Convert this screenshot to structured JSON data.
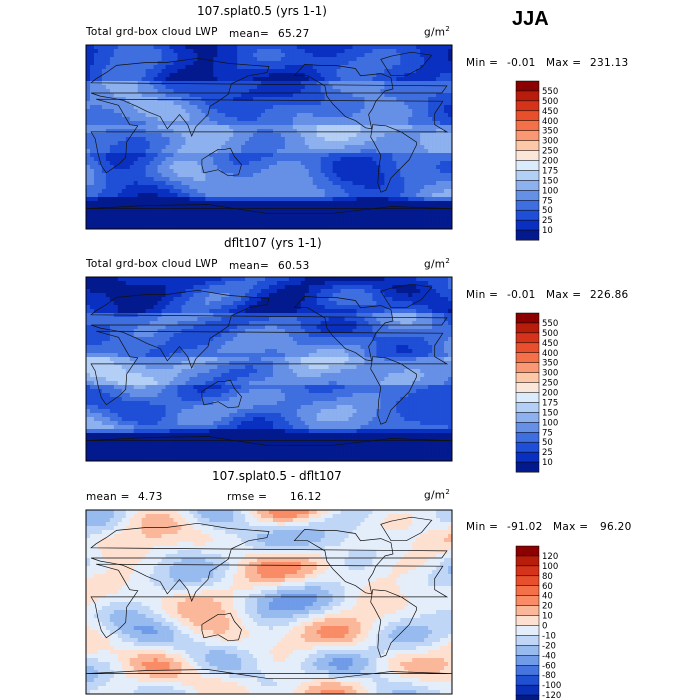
{
  "season": "JJA",
  "chart_data": [
    {
      "type": "heatmap",
      "title": "107.splat0.5 (yrs 1-1)",
      "left_label": "Total grd-box cloud LWP",
      "mean_text": "mean=",
      "mean_value": "65.27",
      "units": "g/m",
      "units_sup": "2",
      "min_text": "Min =",
      "min_value": "-0.01",
      "max_text": "Max =",
      "max_value": "231.13",
      "colorbar": {
        "levels": [
          "550",
          "500",
          "450",
          "400",
          "350",
          "300",
          "250",
          "200",
          "175",
          "150",
          "100",
          "75",
          "50",
          "25",
          "10"
        ],
        "colors": [
          "#8b0000",
          "#b81c0a",
          "#d6341a",
          "#e8502d",
          "#f47048",
          "#f99873",
          "#fdc8a8",
          "#fbe6da",
          "#dcebfb",
          "#b4cff5",
          "#8db0ee",
          "#6690e6",
          "#3f6edf",
          "#1f4fd6",
          "#0a30c2",
          "#031a8f"
        ]
      }
    },
    {
      "type": "heatmap",
      "title": "dflt107 (yrs 1-1)",
      "left_label": "Total grd-box cloud LWP",
      "mean_text": "mean=",
      "mean_value": "60.53",
      "units": "g/m",
      "units_sup": "2",
      "min_text": "Min =",
      "min_value": "-0.01",
      "max_text": "Max =",
      "max_value": "226.86",
      "colorbar": {
        "levels": [
          "550",
          "500",
          "450",
          "400",
          "350",
          "300",
          "250",
          "200",
          "175",
          "150",
          "100",
          "75",
          "50",
          "25",
          "10"
        ],
        "colors": [
          "#8b0000",
          "#b81c0a",
          "#d6341a",
          "#e8502d",
          "#f47048",
          "#f99873",
          "#fdc8a8",
          "#fbe6da",
          "#dcebfb",
          "#b4cff5",
          "#8db0ee",
          "#6690e6",
          "#3f6edf",
          "#1f4fd6",
          "#0a30c2",
          "#031a8f"
        ]
      }
    },
    {
      "type": "heatmap",
      "title": "107.splat0.5 - dflt107",
      "mean_text": "mean =",
      "mean_value": "4.73",
      "rmse_text": "rmse =",
      "rmse_value": "16.12",
      "units": "g/m",
      "units_sup": "2",
      "min_text": "Min =",
      "min_value": "-91.02",
      "max_text": "Max =",
      "max_value": "96.20",
      "colorbar": {
        "levels": [
          "120",
          "100",
          "80",
          "60",
          "40",
          "20",
          "10",
          "0",
          "-10",
          "-20",
          "-40",
          "-60",
          "-80",
          "-100",
          "-120"
        ],
        "colors": [
          "#8b0000",
          "#b81c0a",
          "#d6341a",
          "#e8502d",
          "#f47048",
          "#f98c66",
          "#fbb799",
          "#fde0d0",
          "#e4eefb",
          "#c0d6f6",
          "#98bbef",
          "#6f9be8",
          "#4675df",
          "#2050d2",
          "#0a2fb8",
          "#031a85"
        ]
      }
    }
  ]
}
